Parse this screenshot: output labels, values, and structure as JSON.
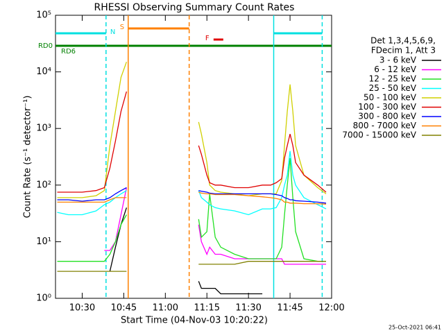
{
  "chart_data": {
    "type": "line",
    "title": "RHESSI Observing Summary Count Rates",
    "xlabel": "Start Time (04-Nov-03 10:20:22)",
    "ylabel": "Count Rate (s⁻¹ detector⁻¹)",
    "footer": "25-Oct-2021 06:41",
    "legend_title": [
      "Det 1,3,4,5,6,9,",
      "FDecim 1, Att 3"
    ],
    "yscale": "log",
    "xlim": [
      "10:20:22",
      "12:00:00"
    ],
    "ylim": [
      1,
      100000
    ],
    "xticks": [
      "10:30",
      "10:45",
      "11:00",
      "11:15",
      "11:30",
      "11:45",
      "12:00"
    ],
    "yticks": [
      {
        "value": 1,
        "label": "10⁰"
      },
      {
        "value": 10,
        "label": "10¹"
      },
      {
        "value": 100,
        "label": "10²"
      },
      {
        "value": 1000,
        "label": "10³"
      },
      {
        "value": 10000,
        "label": "10⁴"
      },
      {
        "value": 100000,
        "label": "10⁵"
      }
    ],
    "x": [
      "10:21",
      "10:25",
      "10:30",
      "10:35",
      "10:38",
      "10:40",
      "10:42",
      "10:44",
      "10:46",
      "10:55",
      "11:12",
      "11:13",
      "11:15",
      "11:16",
      "11:18",
      "11:20",
      "11:25",
      "11:30",
      "11:35",
      "11:38",
      "11:40",
      "11:42",
      "11:43",
      "11:44",
      "11:45",
      "11:46",
      "11:47",
      "11:50",
      "11:55",
      "11:58"
    ],
    "series": [
      {
        "name": "3 - 6 keV",
        "color": "#000000",
        "values": [
          null,
          null,
          null,
          null,
          null,
          3,
          8,
          20,
          40,
          null,
          2,
          1.5,
          1.5,
          1.5,
          1.5,
          1.2,
          1.2,
          1.2,
          1.2,
          null,
          null,
          null,
          null,
          null,
          null,
          null,
          null,
          null,
          null,
          null
        ]
      },
      {
        "name": "6 - 12 keV",
        "color": "#ff00ff",
        "values": [
          null,
          null,
          null,
          null,
          7,
          7,
          10,
          30,
          90,
          null,
          20,
          10,
          6,
          8,
          6,
          6,
          5,
          5,
          5,
          5,
          5,
          5,
          4,
          4,
          4,
          4,
          4,
          4,
          4,
          4
        ]
      },
      {
        "name": "12 - 25 keV",
        "color": "#22e022",
        "values": [
          4.5,
          4.5,
          4.5,
          4.5,
          4.5,
          6,
          10,
          20,
          30,
          null,
          25,
          12,
          15,
          70,
          12,
          8,
          6,
          5,
          5,
          5,
          5,
          8,
          30,
          100,
          300,
          60,
          15,
          5,
          4.5,
          4.5
        ]
      },
      {
        "name": "25 - 50 keV",
        "color": "#00ffff",
        "values": [
          33,
          30,
          30,
          35,
          45,
          50,
          60,
          70,
          80,
          null,
          80,
          60,
          50,
          45,
          40,
          38,
          35,
          30,
          38,
          38,
          40,
          60,
          100,
          150,
          400,
          150,
          100,
          60,
          45,
          38
        ]
      },
      {
        "name": "50 - 100 keV",
        "color": "#d0d000",
        "values": [
          60,
          60,
          60,
          65,
          80,
          500,
          2000,
          8000,
          15000,
          null,
          1300,
          800,
          250,
          100,
          80,
          75,
          70,
          65,
          70,
          70,
          70,
          120,
          500,
          2000,
          6000,
          2000,
          500,
          150,
          90,
          70
        ]
      },
      {
        "name": "100 - 300 keV",
        "color": "#e00000",
        "values": [
          75,
          75,
          75,
          80,
          90,
          200,
          600,
          2000,
          4500,
          null,
          500,
          350,
          150,
          110,
          100,
          100,
          90,
          90,
          100,
          100,
          110,
          130,
          300,
          500,
          800,
          500,
          250,
          150,
          100,
          75
        ]
      },
      {
        "name": "300 - 800 keV",
        "color": "#0000ff",
        "values": [
          55,
          55,
          52,
          55,
          55,
          60,
          70,
          80,
          90,
          null,
          80,
          78,
          75,
          72,
          70,
          70,
          70,
          70,
          70,
          70,
          68,
          65,
          60,
          58,
          55,
          55,
          53,
          52,
          50,
          48
        ]
      },
      {
        "name": "800 - 7000 keV",
        "color": "#ff8000",
        "values": [
          50,
          50,
          50,
          50,
          50,
          55,
          60,
          60,
          60,
          null,
          75,
          72,
          70,
          70,
          68,
          68,
          68,
          65,
          62,
          60,
          58,
          55,
          50,
          50,
          48,
          48,
          48,
          47,
          47,
          46
        ]
      },
      {
        "name": "7000 - 15000 keV",
        "color": "#808000",
        "values": [
          3,
          3,
          3,
          3,
          3,
          3,
          3,
          3,
          3,
          null,
          4,
          4,
          4,
          4,
          4,
          4,
          4,
          4.5,
          4.5,
          4.5,
          4.5,
          4.5,
          4.5,
          4.5,
          4.5,
          4.5,
          4.5,
          4.5,
          4.5,
          4.5
        ]
      }
    ],
    "flags": [
      {
        "label": "N",
        "color": "#00e0e0",
        "intervals": [
          [
            "10:20:22",
            "10:38:36"
          ],
          [
            "11:39:06",
            "11:56:36"
          ]
        ]
      },
      {
        "label": "S",
        "color": "#ff8000",
        "intervals": [
          [
            "10:46:36",
            "11:08:36"
          ]
        ]
      },
      {
        "label": "F",
        "color": "#e00000",
        "intervals": [
          [
            "11:17:24",
            "11:20:54"
          ]
        ]
      }
    ],
    "attenuator": {
      "labels": [
        "RD0",
        "RD6"
      ],
      "color": "#008000"
    }
  }
}
